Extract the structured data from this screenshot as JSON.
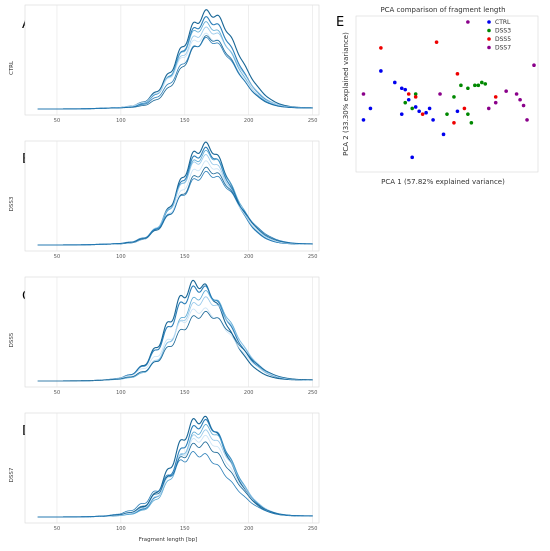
{
  "chart_data": [
    {
      "type": "line",
      "panel_letter": "A",
      "ylabel": "CTRL",
      "xlabel": "",
      "xticks": [
        "50",
        "100",
        "150",
        "200",
        "250"
      ],
      "xlim": [
        25,
        255
      ],
      "colors": [
        "#0b5d8f",
        "#1f77b4",
        "#4fa3d1",
        "#8cc3e8",
        "#c6e2f5"
      ],
      "series": [
        {
          "amplitude": 0.95,
          "peak": 169,
          "spread": 22
        },
        {
          "amplitude": 0.88,
          "peak": 168,
          "spread": 21
        },
        {
          "amplitude": 0.83,
          "peak": 167,
          "spread": 21
        },
        {
          "amplitude": 0.78,
          "peak": 168,
          "spread": 22
        },
        {
          "amplitude": 0.72,
          "peak": 167,
          "spread": 22
        },
        {
          "amplitude": 0.7,
          "peak": 169,
          "spread": 20
        },
        {
          "amplitude": 0.68,
          "peak": 168,
          "spread": 21
        }
      ]
    },
    {
      "type": "line",
      "panel_letter": "B",
      "ylabel": "DSS3",
      "xlabel": "",
      "xticks": [
        "50",
        "100",
        "150",
        "200",
        "250"
      ],
      "xlim": [
        25,
        255
      ],
      "colors": [
        "#0b5d8f",
        "#1f77b4",
        "#4fa3d1",
        "#8cc3e8",
        "#c6e2f5"
      ],
      "series": [
        {
          "amplitude": 0.98,
          "peak": 166,
          "spread": 20
        },
        {
          "amplitude": 0.93,
          "peak": 166,
          "spread": 20
        },
        {
          "amplitude": 0.9,
          "peak": 167,
          "spread": 21
        },
        {
          "amplitude": 0.86,
          "peak": 166,
          "spread": 21
        },
        {
          "amplitude": 0.8,
          "peak": 167,
          "spread": 21
        },
        {
          "amplitude": 0.74,
          "peak": 168,
          "spread": 22
        },
        {
          "amplitude": 0.7,
          "peak": 168,
          "spread": 23
        }
      ]
    },
    {
      "type": "line",
      "panel_letter": "C",
      "ylabel": "DSS5",
      "xlabel": "",
      "xticks": [
        "50",
        "100",
        "150",
        "200",
        "250"
      ],
      "xlim": [
        25,
        255
      ],
      "colors": [
        "#0b5d8f",
        "#1f77b4",
        "#4fa3d1",
        "#8cc3e8",
        "#c6e2f5"
      ],
      "series": [
        {
          "amplitude": 0.96,
          "peak": 160,
          "spread": 22
        },
        {
          "amplitude": 0.92,
          "peak": 162,
          "spread": 23
        },
        {
          "amplitude": 0.86,
          "peak": 166,
          "spread": 22
        },
        {
          "amplitude": 0.8,
          "peak": 166,
          "spread": 23
        },
        {
          "amplitude": 0.7,
          "peak": 163,
          "spread": 24
        },
        {
          "amplitude": 0.66,
          "peak": 166,
          "spread": 24
        }
      ]
    },
    {
      "type": "line",
      "panel_letter": "D",
      "ylabel": "DSS7",
      "xlabel": "Fragment length [bp]",
      "xticks": [
        "50",
        "100",
        "150",
        "200",
        "250"
      ],
      "xlim": [
        25,
        255
      ],
      "colors": [
        "#0b5d8f",
        "#1f77b4",
        "#4fa3d1",
        "#8cc3e8",
        "#c6e2f5"
      ],
      "series": [
        {
          "amplitude": 0.97,
          "peak": 163,
          "spread": 21
        },
        {
          "amplitude": 0.93,
          "peak": 165,
          "spread": 21
        },
        {
          "amplitude": 0.88,
          "peak": 166,
          "spread": 21
        },
        {
          "amplitude": 0.83,
          "peak": 165,
          "spread": 22
        },
        {
          "amplitude": 0.78,
          "peak": 164,
          "spread": 22
        },
        {
          "amplitude": 0.72,
          "peak": 163,
          "spread": 23
        },
        {
          "amplitude": 0.62,
          "peak": 160,
          "spread": 24
        }
      ]
    },
    {
      "type": "scatter",
      "panel_letter": "E",
      "title": "PCA comparison of fragment length",
      "xlabel": "PCA 1 (57.82% explained variance)",
      "ylabel": "PCA 2 (33.30% explained variance)",
      "legend_position": "top-right",
      "series": [
        {
          "name": "CTRL",
          "color": "#0000ee",
          "points": [
            [
              0.06,
              0.4
            ],
            [
              0.12,
              0.66
            ],
            [
              0.02,
              0.32
            ],
            [
              0.2,
              0.58
            ],
            [
              0.24,
              0.54
            ],
            [
              0.28,
              0.46
            ],
            [
              0.32,
              0.41
            ],
            [
              0.34,
              0.38
            ],
            [
              0.38,
              0.37
            ],
            [
              0.4,
              0.4
            ],
            [
              0.42,
              0.32
            ],
            [
              0.48,
              0.22
            ],
            [
              0.3,
              0.06
            ],
            [
              0.24,
              0.36
            ],
            [
              0.56,
              0.38
            ],
            [
              0.26,
              0.53
            ]
          ]
        },
        {
          "name": "DSS3",
          "color": "#008800",
          "points": [
            [
              0.26,
              0.44
            ],
            [
              0.54,
              0.48
            ],
            [
              0.58,
              0.56
            ],
            [
              0.62,
              0.54
            ],
            [
              0.66,
              0.56
            ],
            [
              0.68,
              0.56
            ],
            [
              0.7,
              0.58
            ],
            [
              0.72,
              0.57
            ],
            [
              0.62,
              0.36
            ],
            [
              0.64,
              0.3
            ],
            [
              0.5,
              0.36
            ],
            [
              0.32,
              0.5
            ],
            [
              0.3,
              0.4
            ]
          ]
        },
        {
          "name": "DSS5",
          "color": "#ee0000",
          "points": [
            [
              0.12,
              0.82
            ],
            [
              0.44,
              0.86
            ],
            [
              0.56,
              0.64
            ],
            [
              0.32,
              0.48
            ],
            [
              0.36,
              0.36
            ],
            [
              0.54,
              0.3
            ],
            [
              0.6,
              0.4
            ],
            [
              0.78,
              0.48
            ],
            [
              0.28,
              0.5
            ]
          ]
        },
        {
          "name": "DSS7",
          "color": "#8a008a",
          "points": [
            [
              0.62,
              1.0
            ],
            [
              1.0,
              0.7
            ],
            [
              0.74,
              0.4
            ],
            [
              0.84,
              0.52
            ],
            [
              0.92,
              0.46
            ],
            [
              0.94,
              0.42
            ],
            [
              0.9,
              0.5
            ],
            [
              0.96,
              0.32
            ],
            [
              0.02,
              0.5
            ],
            [
              0.78,
              0.44
            ],
            [
              0.46,
              0.5
            ]
          ]
        }
      ]
    }
  ]
}
